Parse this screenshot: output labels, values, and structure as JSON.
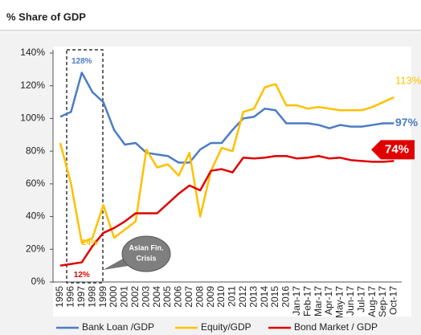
{
  "chart_data": {
    "type": "line",
    "title": "% Share of GDP",
    "categories": [
      "1995",
      "1996",
      "1997",
      "1998",
      "1999",
      "2000",
      "2001",
      "2002",
      "2003",
      "2004",
      "2005",
      "2006",
      "2007",
      "2008",
      "2009",
      "2010",
      "2011",
      "2012",
      "2013",
      "2014",
      "2015",
      "2016",
      "Jan-17",
      "Feb-17",
      "Mar-17",
      "Apr-17",
      "May-17",
      "Jun-17",
      "Jul-17",
      "Aug-17",
      "Sep-17",
      "Oct-17"
    ],
    "series": [
      {
        "name": "Bank Loan /GDP",
        "color": "#4a7cc4",
        "values": [
          101,
          104,
          128,
          116,
          110,
          93,
          84,
          85,
          79,
          78,
          77,
          73,
          73,
          81,
          85,
          85,
          93,
          100,
          101,
          106,
          105,
          97,
          97,
          97,
          96,
          94,
          96,
          95,
          95,
          96,
          97,
          97
        ],
        "value_labels": [
          null,
          null,
          "128%",
          null,
          null,
          null,
          null,
          null,
          null,
          null,
          null,
          null,
          null,
          null,
          null,
          null,
          null,
          null,
          null,
          null,
          null,
          null,
          null,
          null,
          null,
          null,
          null,
          null,
          null,
          null,
          null,
          "97%"
        ]
      },
      {
        "name": "Equity/GDP",
        "color": "#ffc000",
        "values": [
          85,
          60,
          24,
          27,
          47,
          27,
          32,
          37,
          81,
          70,
          72,
          65,
          79,
          40,
          68,
          82,
          80,
          104,
          106,
          119,
          121,
          108,
          108,
          106,
          107,
          106,
          105,
          105,
          105,
          107,
          110,
          113
        ],
        "value_labels": [
          null,
          null,
          "24%",
          null,
          null,
          null,
          null,
          null,
          null,
          null,
          null,
          null,
          null,
          null,
          null,
          null,
          null,
          null,
          null,
          null,
          null,
          null,
          null,
          null,
          null,
          null,
          null,
          null,
          null,
          null,
          null,
          "113%"
        ]
      },
      {
        "name": "Bond Market / GDP",
        "color": "#e00000",
        "values": [
          10,
          11,
          12,
          22,
          30,
          33,
          37,
          42,
          42,
          42,
          48,
          54,
          59,
          56,
          68,
          69,
          67,
          76,
          75.5,
          76,
          77,
          77,
          75.5,
          76,
          77,
          75.5,
          76,
          74.5,
          74,
          73.5,
          73.5,
          74
        ],
        "value_labels": [
          null,
          null,
          "12%",
          null,
          null,
          null,
          null,
          null,
          null,
          null,
          null,
          null,
          null,
          null,
          null,
          null,
          null,
          null,
          null,
          null,
          null,
          null,
          null,
          null,
          null,
          null,
          null,
          null,
          null,
          null,
          null,
          "74%"
        ]
      }
    ],
    "annotation": [
      "Asian Fin.",
      "Crisis"
    ],
    "ylim": [
      0,
      140
    ],
    "yticks": [
      {
        "value": 0,
        "label": "0%"
      },
      {
        "value": 20,
        "label": "20%"
      },
      {
        "value": 40,
        "label": "40%"
      },
      {
        "value": 60,
        "label": "60%"
      },
      {
        "value": 80,
        "label": "80%"
      },
      {
        "value": 100,
        "label": "100%"
      },
      {
        "value": 120,
        "label": "120%"
      },
      {
        "value": 140,
        "label": "140%"
      }
    ],
    "grid": false,
    "legend": "bottom"
  }
}
